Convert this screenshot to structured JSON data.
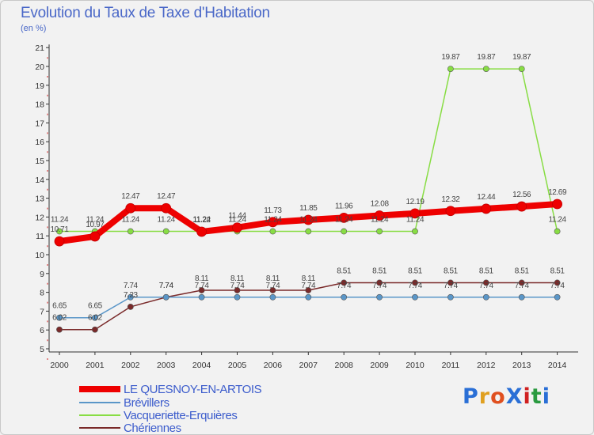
{
  "chart_data": {
    "type": "line",
    "title": "Evolution du Taux de Taxe d'Habitation",
    "unit_label": "(en %)",
    "x": [
      "2000",
      "2001",
      "2002",
      "2003",
      "2004",
      "2005",
      "2006",
      "2007",
      "2008",
      "2009",
      "2010",
      "2011",
      "2012",
      "2013",
      "2014"
    ],
    "ylim": [
      5,
      21
    ],
    "yticks": [
      5,
      6,
      7,
      8,
      9,
      10,
      11,
      12,
      13,
      14,
      15,
      16,
      17,
      18,
      19,
      20,
      21
    ],
    "grid": false,
    "legend_position": "bottom-left",
    "series": [
      {
        "name": "LE QUESNOY-EN-ARTOIS",
        "color": "#ee0000",
        "values": [
          10.71,
          10.97,
          12.47,
          12.47,
          11.22,
          11.44,
          11.73,
          11.85,
          11.96,
          12.08,
          12.19,
          12.32,
          12.44,
          12.56,
          12.69
        ],
        "labels": [
          "10.71",
          "10.97",
          "12.47",
          "12.47",
          "11.22",
          "11.44",
          "11.73",
          "11.85",
          "11.96",
          "12.08",
          "12.19",
          "12.32",
          "12.44",
          "12.56",
          "12.69"
        ]
      },
      {
        "name": "Brévillers",
        "color": "#5a96c8",
        "values": [
          6.65,
          6.65,
          7.74,
          7.74,
          7.74,
          7.74,
          7.74,
          7.74,
          7.74,
          7.74,
          7.74,
          7.74,
          7.74,
          7.74,
          7.74
        ],
        "labels": [
          "6.65",
          "6.65",
          "7.74",
          "7.74",
          "7.74",
          "7.74",
          "7.74",
          "7.74",
          "7.74",
          "7.74",
          "7.74",
          "7.74",
          "7.74",
          "7.74",
          "7.74"
        ]
      },
      {
        "name": "Vacqueriette-Erquières",
        "color": "#88dd44",
        "values": [
          11.24,
          11.24,
          11.24,
          11.24,
          11.24,
          11.24,
          11.24,
          11.24,
          11.24,
          11.24,
          11.24,
          19.87,
          19.87,
          19.87,
          11.24
        ],
        "labels": [
          "11.24",
          "11.24",
          "11.24",
          "11.24",
          "11.24",
          "11.24",
          "11.24",
          "11.24",
          "11.24",
          "11.24",
          "11.24",
          "19.87",
          "19.87",
          "19.87",
          "11.24"
        ]
      },
      {
        "name": "Chériennes",
        "color": "#7a2a2a",
        "values": [
          6.02,
          6.02,
          7.23,
          7.74,
          8.11,
          8.11,
          8.11,
          8.11,
          8.51,
          8.51,
          8.51,
          8.51,
          8.51,
          8.51,
          8.51
        ],
        "labels": [
          "6.02",
          "6.02",
          "7.23",
          "7.74",
          "8.11",
          "8.11",
          "8.11",
          "8.11",
          "8.51",
          "8.51",
          "8.51",
          "8.51",
          "8.51",
          "8.51",
          "8.51"
        ]
      }
    ]
  },
  "legend": [
    "LE QUESNOY-EN-ARTOIS",
    "Brévillers",
    "Vacqueriette-Erquières",
    "Chériennes"
  ],
  "logo": {
    "text": "ProXiti",
    "letters": [
      "P",
      "r",
      "o",
      "X",
      "i",
      "t",
      "i"
    ],
    "colors": [
      "#2a6fd6",
      "#e0a020",
      "#e05020",
      "#2a6fd6",
      "#d02020",
      "#2a9a40",
      "#2a6fd6"
    ]
  }
}
